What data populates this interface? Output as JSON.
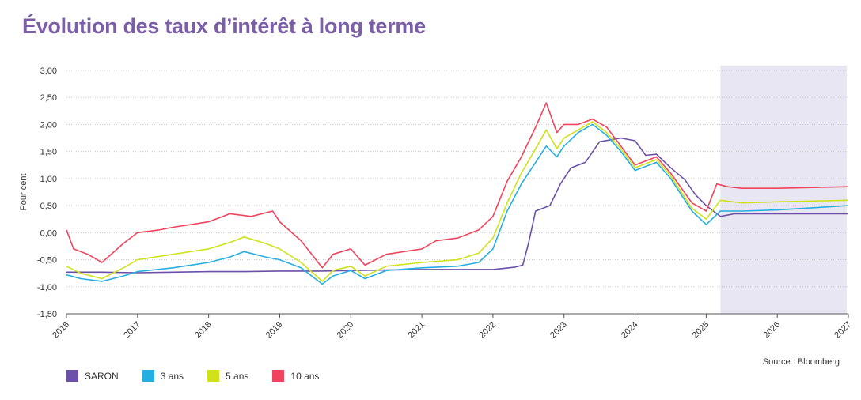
{
  "title": "Évolution des taux d’intérêt à long terme",
  "source": "Source : Bloomberg",
  "colors": {
    "title": "#7b5ea7",
    "forecast_band": "#e9e6f3",
    "saron": "#6b4fa8",
    "y3": "#27aee0",
    "y5": "#cfe21a",
    "y10": "#f0445e"
  },
  "chart_data": {
    "type": "line",
    "title": "Évolution des taux d’intérêt à long terme",
    "xlabel": "",
    "ylabel": "Pour cent",
    "ylim": [
      -1.5,
      3.0
    ],
    "xlim": [
      2016,
      2027
    ],
    "yticks": [
      "3,00",
      "2,50",
      "2,00",
      "1,50",
      "1,00",
      "0,50",
      "0,00",
      "-0,50",
      "-1,00",
      "-1,50"
    ],
    "xticks": [
      "2016",
      "2017",
      "2018",
      "2019",
      "2020",
      "2021",
      "2022",
      "2023",
      "2024",
      "2025",
      "2026",
      "2027"
    ],
    "forecast_start": 2025.2,
    "grid": "horizontal",
    "legend_position": "bottom-left",
    "series": [
      {
        "name": "SARON",
        "color_key": "saron",
        "x": [
          2016.0,
          2016.5,
          2017.0,
          2017.5,
          2018.0,
          2018.5,
          2019.0,
          2019.5,
          2019.6,
          2020.0,
          2020.5,
          2021.0,
          2021.5,
          2022.0,
          2022.3,
          2022.42,
          2022.5,
          2022.6,
          2022.8,
          2022.95,
          2023.1,
          2023.3,
          2023.5,
          2023.8,
          2024.0,
          2024.15,
          2024.3,
          2024.5,
          2024.7,
          2024.85,
          2025.0,
          2025.2,
          2025.4,
          2026.0,
          2027.0
        ],
        "y": [
          -0.73,
          -0.73,
          -0.74,
          -0.73,
          -0.72,
          -0.72,
          -0.71,
          -0.71,
          -0.71,
          -0.7,
          -0.69,
          -0.68,
          -0.68,
          -0.68,
          -0.64,
          -0.6,
          -0.2,
          0.4,
          0.5,
          0.9,
          1.2,
          1.3,
          1.68,
          1.75,
          1.7,
          1.43,
          1.45,
          1.2,
          0.98,
          0.7,
          0.5,
          0.3,
          0.35,
          0.35,
          0.35
        ]
      },
      {
        "name": "3 ans",
        "color_key": "y3",
        "x": [
          2016.0,
          2016.2,
          2016.5,
          2016.8,
          2017.0,
          2017.5,
          2018.0,
          2018.3,
          2018.5,
          2018.8,
          2019.0,
          2019.3,
          2019.6,
          2019.75,
          2020.0,
          2020.2,
          2020.5,
          2021.0,
          2021.5,
          2021.8,
          2022.0,
          2022.2,
          2022.4,
          2022.6,
          2022.75,
          2022.9,
          2023.0,
          2023.2,
          2023.4,
          2023.6,
          2023.8,
          2024.0,
          2024.3,
          2024.5,
          2024.8,
          2025.0,
          2025.2,
          2025.5,
          2026.0,
          2027.0
        ],
        "y": [
          -0.78,
          -0.85,
          -0.9,
          -0.8,
          -0.72,
          -0.65,
          -0.55,
          -0.45,
          -0.35,
          -0.45,
          -0.5,
          -0.65,
          -0.95,
          -0.8,
          -0.7,
          -0.85,
          -0.7,
          -0.65,
          -0.62,
          -0.55,
          -0.3,
          0.4,
          0.9,
          1.3,
          1.6,
          1.4,
          1.6,
          1.85,
          2.0,
          1.8,
          1.5,
          1.15,
          1.3,
          1.0,
          0.4,
          0.15,
          0.4,
          0.4,
          0.42,
          0.5
        ]
      },
      {
        "name": "5 ans",
        "color_key": "y5",
        "x": [
          2016.0,
          2016.2,
          2016.5,
          2016.8,
          2017.0,
          2017.5,
          2018.0,
          2018.3,
          2018.5,
          2018.8,
          2019.0,
          2019.3,
          2019.6,
          2019.75,
          2020.0,
          2020.2,
          2020.5,
          2021.0,
          2021.5,
          2021.8,
          2022.0,
          2022.2,
          2022.4,
          2022.6,
          2022.75,
          2022.9,
          2023.0,
          2023.2,
          2023.4,
          2023.6,
          2023.8,
          2024.0,
          2024.3,
          2024.5,
          2024.8,
          2025.0,
          2025.2,
          2025.5,
          2026.0,
          2027.0
        ],
        "y": [
          -0.62,
          -0.75,
          -0.85,
          -0.65,
          -0.5,
          -0.4,
          -0.3,
          -0.18,
          -0.08,
          -0.2,
          -0.3,
          -0.55,
          -0.9,
          -0.7,
          -0.62,
          -0.8,
          -0.62,
          -0.55,
          -0.5,
          -0.38,
          -0.1,
          0.55,
          1.1,
          1.55,
          1.9,
          1.55,
          1.75,
          1.9,
          2.05,
          1.85,
          1.55,
          1.2,
          1.35,
          1.05,
          0.45,
          0.25,
          0.6,
          0.55,
          0.57,
          0.6
        ]
      },
      {
        "name": "10 ans",
        "color_key": "y10",
        "x": [
          2016.0,
          2016.1,
          2016.3,
          2016.5,
          2016.8,
          2017.0,
          2017.3,
          2017.5,
          2018.0,
          2018.3,
          2018.6,
          2018.9,
          2019.0,
          2019.3,
          2019.6,
          2019.75,
          2020.0,
          2020.2,
          2020.5,
          2021.0,
          2021.2,
          2021.5,
          2021.8,
          2022.0,
          2022.2,
          2022.4,
          2022.6,
          2022.75,
          2022.9,
          2023.0,
          2023.2,
          2023.4,
          2023.6,
          2023.8,
          2024.0,
          2024.3,
          2024.5,
          2024.8,
          2025.0,
          2025.15,
          2025.3,
          2025.5,
          2026.0,
          2027.0
        ],
        "y": [
          0.05,
          -0.3,
          -0.4,
          -0.55,
          -0.2,
          0.0,
          0.05,
          0.1,
          0.2,
          0.35,
          0.3,
          0.4,
          0.2,
          -0.15,
          -0.65,
          -0.4,
          -0.3,
          -0.6,
          -0.4,
          -0.3,
          -0.15,
          -0.1,
          0.05,
          0.3,
          0.95,
          1.4,
          1.95,
          2.4,
          1.85,
          2.0,
          2.0,
          2.1,
          1.95,
          1.6,
          1.25,
          1.4,
          1.1,
          0.55,
          0.4,
          0.9,
          0.85,
          0.82,
          0.82,
          0.85
        ]
      }
    ]
  }
}
